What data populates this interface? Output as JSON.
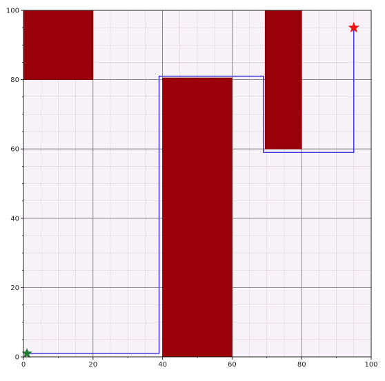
{
  "chart_data": {
    "type": "scatter",
    "title": "",
    "xlabel": "",
    "ylabel": "",
    "xlim": [
      0,
      100
    ],
    "ylim": [
      0,
      100
    ],
    "x_ticks": [
      0,
      20,
      40,
      60,
      80,
      100
    ],
    "y_ticks": [
      0,
      20,
      40,
      60,
      80,
      100
    ],
    "x_tick_labels": [
      "0",
      "20",
      "40",
      "60",
      "80",
      "100"
    ],
    "y_tick_labels": [
      "0",
      "20",
      "40",
      "60",
      "80",
      "100"
    ],
    "minor_step": 5,
    "grid": true,
    "obstacles": [
      {
        "x0": 0,
        "y0": 80,
        "x1": 20,
        "y1": 100
      },
      {
        "x0": 40,
        "y0": 0,
        "x1": 60,
        "y1": 80.5
      },
      {
        "x0": 69.5,
        "y0": 60,
        "x1": 80,
        "y1": 100
      }
    ],
    "path": [
      {
        "x": 1,
        "y": 1
      },
      {
        "x": 39,
        "y": 1
      },
      {
        "x": 39,
        "y": 81
      },
      {
        "x": 69,
        "y": 81
      },
      {
        "x": 69,
        "y": 59
      },
      {
        "x": 95,
        "y": 59
      },
      {
        "x": 95,
        "y": 95
      }
    ],
    "start": {
      "x": 1,
      "y": 1
    },
    "goal": {
      "x": 95,
      "y": 95
    },
    "colors": {
      "background": "#f7f2f7",
      "obstacle": "#9a000a",
      "path": "#2a1bd6",
      "start": "#1f7a32",
      "goal": "#ee1111",
      "major_grid": "#6e6e6e",
      "minor_grid": "#dcd6dc"
    }
  }
}
